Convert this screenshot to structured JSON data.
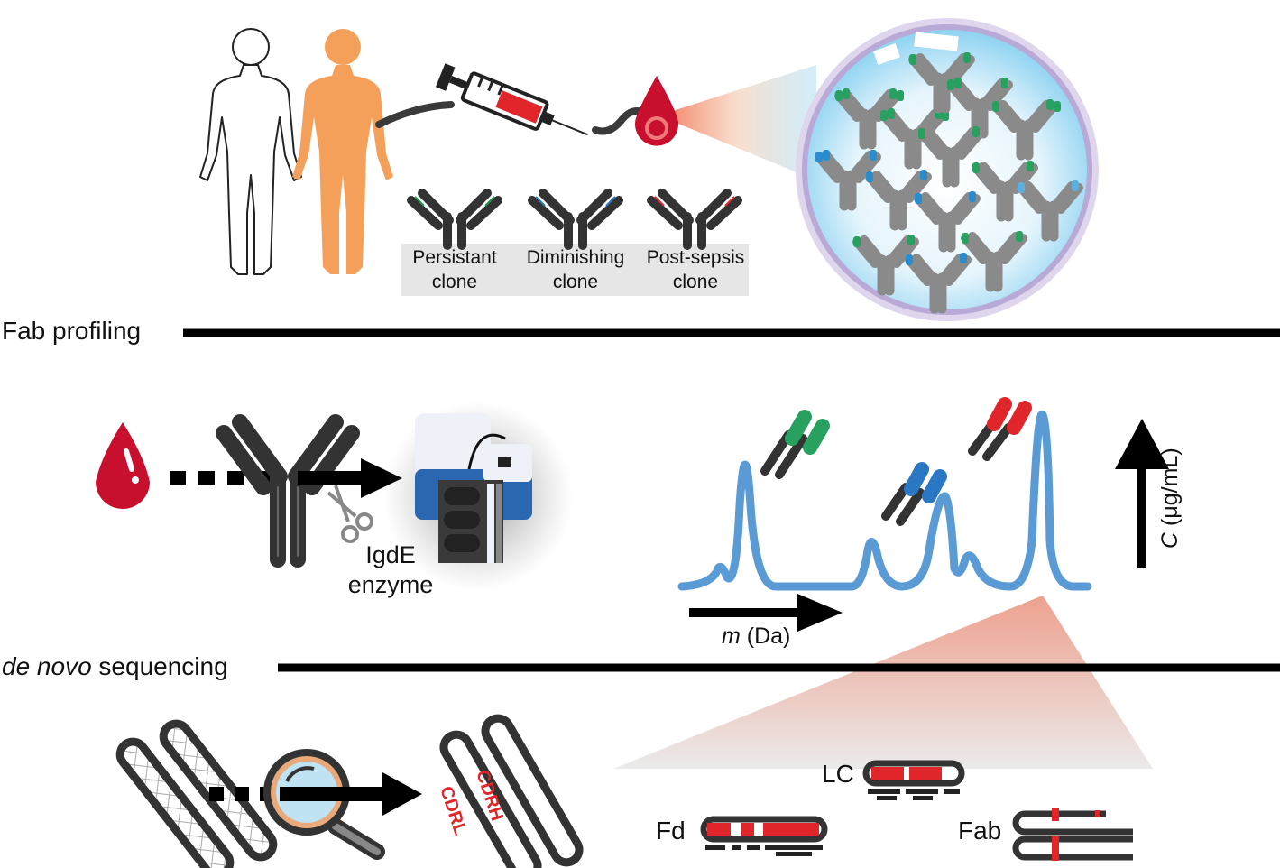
{
  "clones": {
    "persistent": {
      "line1": "Persistant",
      "line2": "clone",
      "color": "#1f9a4d"
    },
    "diminishing": {
      "line1": "Diminishing",
      "line2": "clone",
      "color": "#2a78c4"
    },
    "post_sepsis": {
      "line1": "Post-sepsis",
      "line2": "clone",
      "color": "#e0262b"
    }
  },
  "sections": {
    "fab_profiling": "Fab profiling",
    "de_novo_italic": "de novo",
    "de_novo_rest": " sequencing"
  },
  "enzyme": {
    "line1": "IgdE",
    "line2": "enzyme"
  },
  "spectrum": {
    "x_axis_italic": "m",
    "x_axis_rest": " (Da)",
    "y_axis_italic": "C",
    "y_axis_rest": " (μg/mL)",
    "color": "#5b9bd5"
  },
  "cdr": {
    "heavy": "CDRH",
    "light": "CDRL"
  },
  "fragments": {
    "lc": "LC",
    "fd": "Fd",
    "fab": "Fab"
  },
  "colors": {
    "blood_red": "#c8102e",
    "antibody_dark": "#3c3c3c",
    "patient_orange": "#f5a05a",
    "sphere_blue": "#bfe6f7",
    "highlight_red": "#e0262b"
  }
}
